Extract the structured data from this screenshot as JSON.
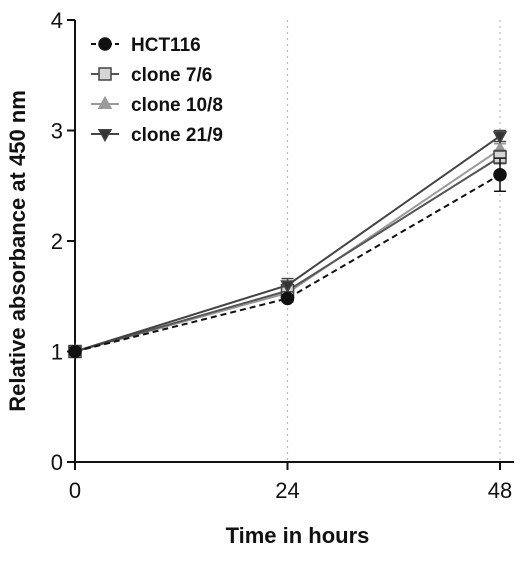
{
  "chart_data": {
    "type": "line",
    "xlabel": "Time in hours",
    "ylabel": "Relative absorbance at 450 nm",
    "x": [
      0,
      24,
      48
    ],
    "x_ticks": [
      "0",
      "24",
      "48"
    ],
    "y_ticks": [
      "0",
      "1",
      "2",
      "3",
      "4"
    ],
    "xlim": [
      0,
      48
    ],
    "ylim": [
      0,
      4
    ],
    "vertical_reference_lines_at_x": [
      24,
      48
    ],
    "legend_position": "top-left",
    "series": [
      {
        "name": "HCT116",
        "values": [
          1.0,
          1.48,
          2.6
        ],
        "error": [
          0.0,
          0.03,
          0.15
        ],
        "marker": "circle",
        "line": "dashed",
        "color": "#111111",
        "marker_fill": "#111111"
      },
      {
        "name": "clone 7/6",
        "values": [
          1.0,
          1.55,
          2.76
        ],
        "error": [
          0.0,
          0.04,
          0.06
        ],
        "marker": "square",
        "line": "solid",
        "color": "#555555",
        "marker_fill": "#d6d6d6"
      },
      {
        "name": "clone 10/8",
        "values": [
          1.0,
          1.53,
          2.83
        ],
        "error": [
          0.0,
          0.04,
          0.05
        ],
        "marker": "triangle-up",
        "line": "solid",
        "color": "#9a9a9a",
        "marker_fill": "#9a9a9a"
      },
      {
        "name": "clone 21/9",
        "values": [
          1.0,
          1.6,
          2.95
        ],
        "error": [
          0.0,
          0.06,
          0.05
        ],
        "marker": "triangle-down",
        "line": "solid",
        "color": "#444444",
        "marker_fill": "#333333"
      }
    ]
  }
}
